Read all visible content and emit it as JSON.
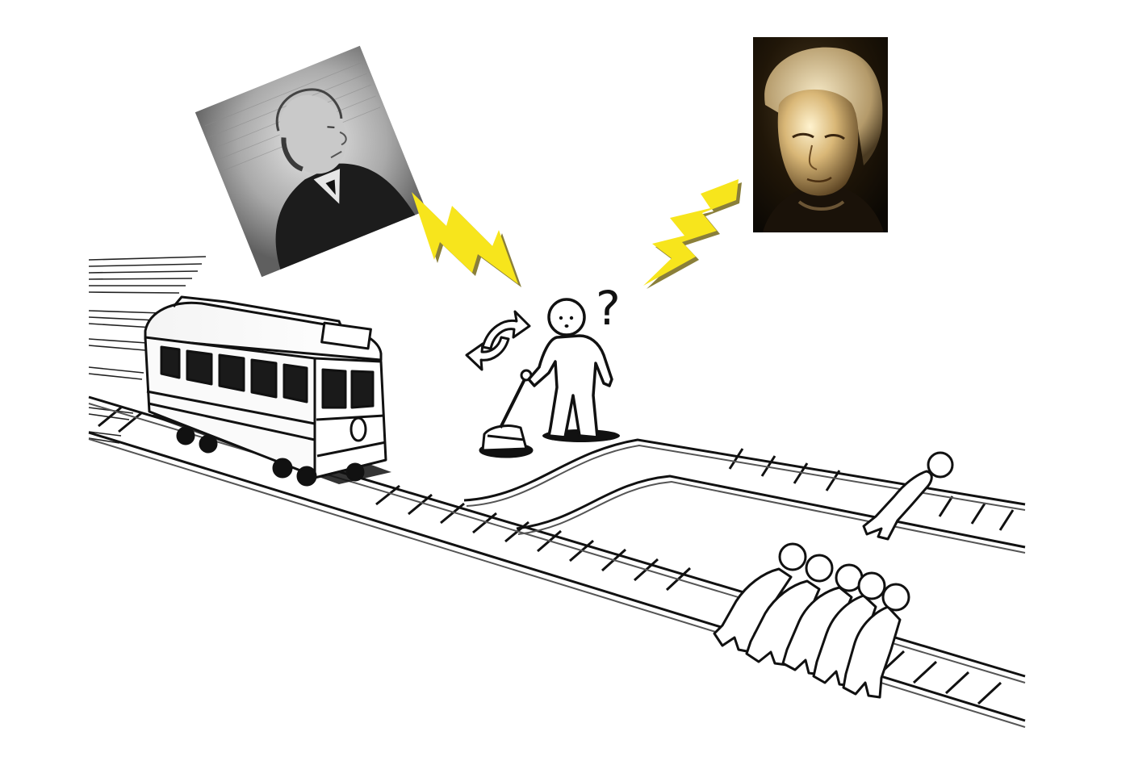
{
  "scene": {
    "question_mark": "?",
    "background_color": "#ffffff",
    "ink_color": "#111111",
    "bolt_color": "#f7e51c",
    "bolt_shadow_color": "#8a7f3a",
    "portrait_left": {
      "icon": "engraved-portrait-icon",
      "style": "grayscale engraving",
      "rotation_deg": -22
    },
    "portrait_right": {
      "icon": "painted-portrait-icon",
      "style": "dark oil painting"
    },
    "figures": {
      "people_on_main_track": 5,
      "people_on_side_track": 1
    }
  }
}
